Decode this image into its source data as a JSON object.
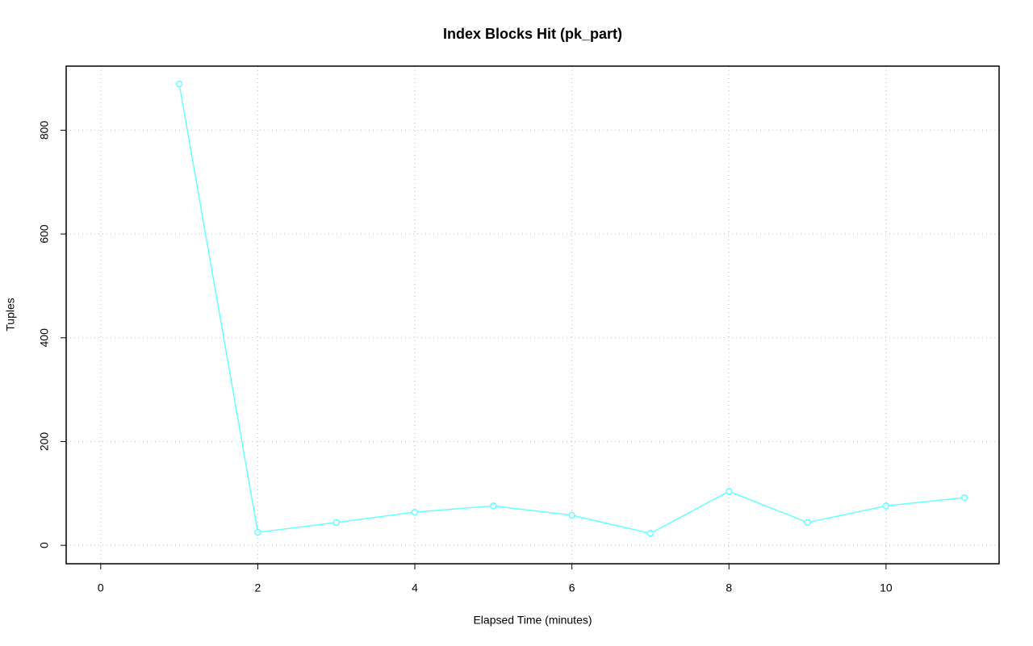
{
  "chart_data": {
    "type": "line",
    "title": "Index Blocks Hit (pk_part)",
    "x_label": "Elapsed Time (minutes)",
    "y_label": "Tuples",
    "x": [
      1,
      2,
      3,
      4,
      5,
      6,
      7,
      8,
      9,
      10,
      11
    ],
    "values": [
      889,
      25,
      44,
      64,
      76,
      58,
      23,
      104,
      44,
      76,
      92
    ],
    "color": "#66ffff",
    "xlim": [
      -0.44,
      11.44
    ],
    "xticks": [
      0,
      2,
      4,
      6,
      8,
      10
    ],
    "ylim": [
      -35.5,
      923.5
    ],
    "yticks": [
      0,
      200,
      400,
      600,
      800
    ],
    "grid": true
  }
}
